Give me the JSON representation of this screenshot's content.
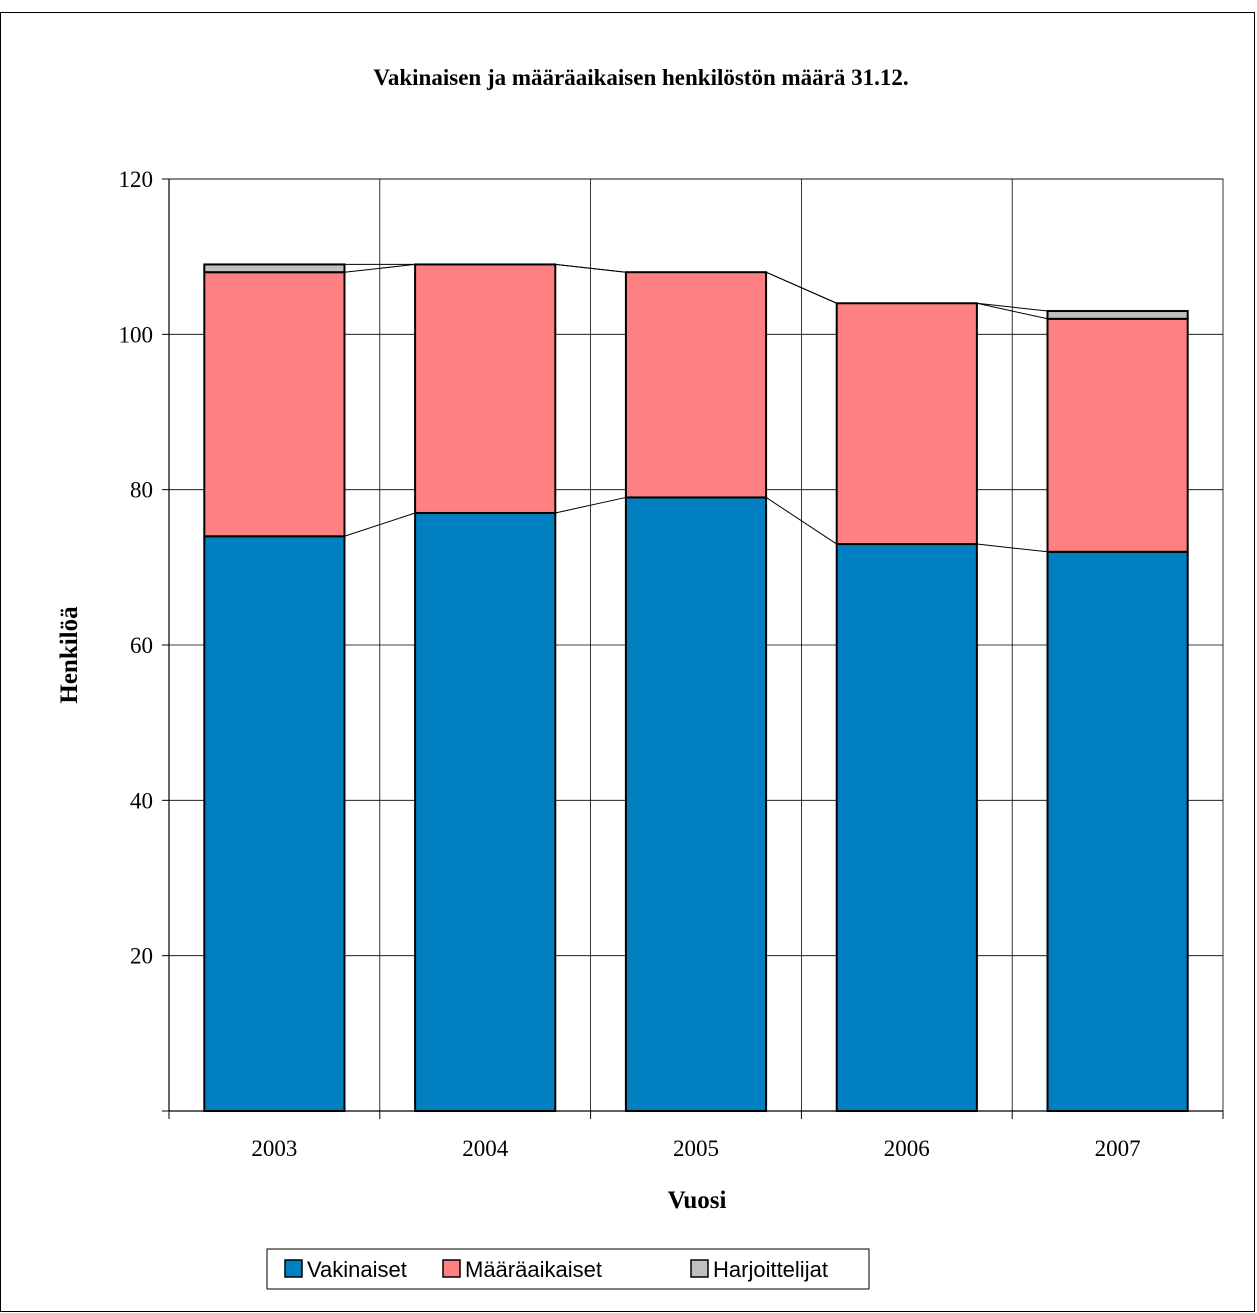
{
  "chart_data": {
    "type": "bar",
    "stacked": true,
    "title": "Vakinaisen ja määräaikaisen henkilöstön määrä 31.12.",
    "xlabel": "Vuosi",
    "ylabel": "Henkilöä",
    "categories": [
      "2003",
      "2004",
      "2005",
      "2006",
      "2007"
    ],
    "series": [
      {
        "name": "Vakinaiset",
        "values": [
          74,
          77,
          79,
          73,
          72
        ],
        "color": "#0080c0"
      },
      {
        "name": "Määräaikaiset",
        "values": [
          34,
          32,
          29,
          31,
          30
        ],
        "color": "#ff8080"
      },
      {
        "name": "Harjoittelijat",
        "values": [
          1,
          0,
          0,
          0,
          1
        ],
        "color": "#c0c0c0"
      }
    ],
    "ylim": [
      0,
      120
    ],
    "yticks": [
      "20",
      "40",
      "60",
      "80",
      "100",
      "120"
    ],
    "grid": true,
    "series_lines": true,
    "legend_position": "bottom"
  }
}
